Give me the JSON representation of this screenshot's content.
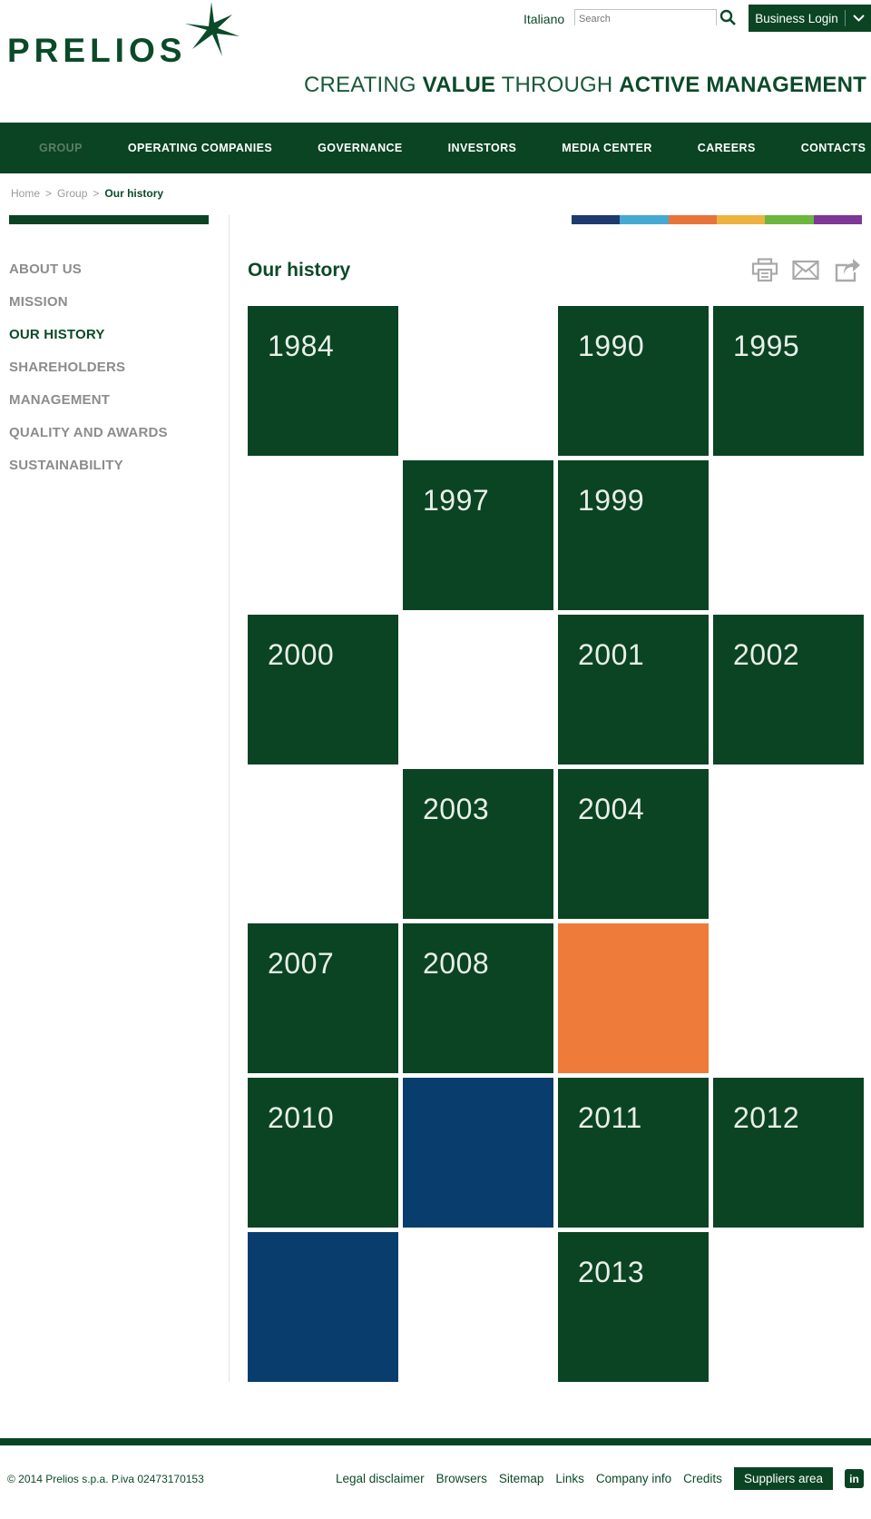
{
  "header": {
    "logo_text": "PRELIOS",
    "language_link": "Italiano",
    "search_placeholder": "Search",
    "login_label": "Business Login",
    "tagline": [
      {
        "text": "CREATING ",
        "bold": false
      },
      {
        "text": "VALUE",
        "bold": true
      },
      {
        "text": " THROUGH ",
        "bold": false
      },
      {
        "text": "ACTIVE MANAGEMENT",
        "bold": true
      }
    ]
  },
  "nav": {
    "items": [
      {
        "label": "GROUP",
        "active": true
      },
      {
        "label": "OPERATING COMPANIES",
        "active": false
      },
      {
        "label": "GOVERNANCE",
        "active": false
      },
      {
        "label": "INVESTORS",
        "active": false
      },
      {
        "label": "MEDIA CENTER",
        "active": false
      },
      {
        "label": "CAREERS",
        "active": false
      },
      {
        "label": "CONTACTS",
        "active": false
      }
    ]
  },
  "breadcrumb": {
    "items": [
      {
        "label": "Home",
        "current": false
      },
      {
        "label": "Group",
        "current": false
      },
      {
        "label": "Our history",
        "current": true
      }
    ],
    "separator": ">"
  },
  "sidebar": {
    "items": [
      {
        "label": "ABOUT US",
        "active": false
      },
      {
        "label": "MISSION",
        "active": false
      },
      {
        "label": "OUR HISTORY",
        "active": true
      },
      {
        "label": "SHAREHOLDERS",
        "active": false
      },
      {
        "label": "MANAGEMENT",
        "active": false
      },
      {
        "label": "QUALITY AND AWARDS",
        "active": false
      },
      {
        "label": "SUSTAINABILITY",
        "active": false
      }
    ]
  },
  "main": {
    "title": "Our history",
    "toolbar_icons": [
      "print-icon",
      "email-icon",
      "share-icon"
    ]
  },
  "timeline": {
    "rows": [
      [
        {
          "year": "1984",
          "color": "green"
        },
        null,
        {
          "year": "1990",
          "color": "green"
        },
        {
          "year": "1995",
          "color": "green"
        }
      ],
      [
        null,
        {
          "year": "1997",
          "color": "green"
        },
        {
          "year": "1999",
          "color": "green"
        },
        null
      ],
      [
        {
          "year": "2000",
          "color": "green"
        },
        null,
        {
          "year": "2001",
          "color": "green"
        },
        {
          "year": "2002",
          "color": "green"
        }
      ],
      [
        null,
        {
          "year": "2003",
          "color": "green"
        },
        {
          "year": "2004",
          "color": "green"
        },
        null
      ],
      [
        {
          "year": "2007",
          "color": "green"
        },
        {
          "year": "2008",
          "color": "green"
        },
        {
          "color": "orange"
        },
        null
      ],
      [
        {
          "year": "2010",
          "color": "green"
        },
        {
          "color": "blue"
        },
        {
          "year": "2011",
          "color": "green"
        },
        {
          "year": "2012",
          "color": "green"
        }
      ],
      [
        {
          "color": "blue"
        },
        null,
        {
          "year": "2013",
          "color": "green"
        },
        null
      ]
    ]
  },
  "colors": {
    "brand_green": "#0a4423",
    "text_green": "#0b4a28",
    "tile_green": "#0a4423",
    "tile_orange": "#ef7b3a",
    "tile_blue": "#093d6e",
    "stripes": [
      "#1f3a6f",
      "#44aad4",
      "#e8743a",
      "#eeb240",
      "#6ab63e",
      "#7e3697"
    ]
  },
  "footer": {
    "copyright": "© 2014 Prelios s.p.a. P.iva 02473170153",
    "links": [
      "Legal disclaimer",
      "Browsers",
      "Sitemap",
      "Links",
      "Company info",
      "Credits"
    ],
    "suppliers_label": "Suppliers area",
    "social_icon": "linkedin-icon",
    "linkedin_glyph": "in"
  }
}
